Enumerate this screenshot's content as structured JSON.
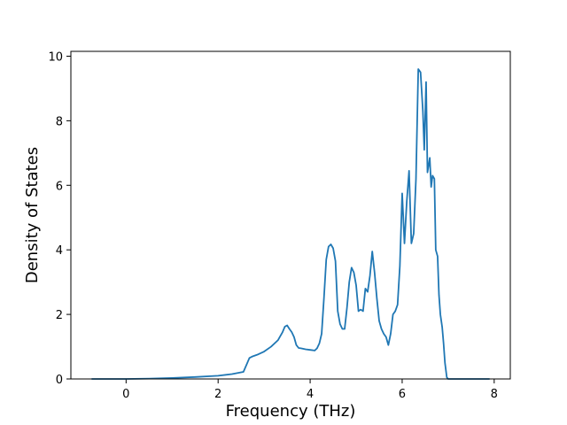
{
  "chart_data": {
    "type": "line",
    "title": "",
    "xlabel": "Frequency (THz)",
    "ylabel": "Density of States",
    "xlim": [
      -1.2,
      8.35
    ],
    "ylim": [
      0,
      10.15
    ],
    "xticks": [
      0,
      2,
      4,
      6,
      8
    ],
    "yticks": [
      0,
      2,
      4,
      6,
      8,
      10
    ],
    "grid": false,
    "legend": "none",
    "series_color": "#1f77b4",
    "series": [
      {
        "x": [
          -0.75,
          0.0,
          0.5,
          1.0,
          1.5,
          2.0,
          2.3,
          2.55,
          2.62,
          2.68,
          2.75,
          2.85,
          3.0,
          3.15,
          3.3,
          3.4,
          3.45,
          3.5,
          3.55,
          3.6,
          3.65,
          3.7,
          3.75,
          3.8,
          3.9,
          4.0,
          4.1,
          4.15,
          4.2,
          4.25,
          4.3,
          4.35,
          4.4,
          4.45,
          4.5,
          4.55,
          4.6,
          4.65,
          4.7,
          4.75,
          4.8,
          4.85,
          4.9,
          4.95,
          5.0,
          5.05,
          5.1,
          5.15,
          5.2,
          5.25,
          5.3,
          5.35,
          5.4,
          5.45,
          5.5,
          5.55,
          5.6,
          5.65,
          5.7,
          5.75,
          5.8,
          5.85,
          5.9,
          5.95,
          6.0,
          6.05,
          6.1,
          6.15,
          6.2,
          6.25,
          6.3,
          6.35,
          6.4,
          6.45,
          6.48,
          6.52,
          6.55,
          6.6,
          6.63,
          6.66,
          6.7,
          6.73,
          6.77,
          6.8,
          6.83,
          6.87,
          6.9,
          6.93,
          6.97,
          7.0,
          7.05,
          7.1,
          7.15,
          7.18,
          7.22,
          7.3,
          7.5,
          7.9
        ],
        "y": [
          0,
          0,
          0.01,
          0.03,
          0.06,
          0.1,
          0.15,
          0.22,
          0.45,
          0.65,
          0.7,
          0.75,
          0.85,
          1.0,
          1.2,
          1.45,
          1.62,
          1.66,
          1.55,
          1.45,
          1.3,
          1.05,
          0.96,
          0.95,
          0.92,
          0.9,
          0.88,
          0.95,
          1.1,
          1.4,
          2.5,
          3.7,
          4.1,
          4.17,
          4.05,
          3.65,
          2.1,
          1.7,
          1.55,
          1.55,
          2.2,
          3.0,
          3.45,
          3.3,
          2.9,
          2.1,
          2.15,
          2.1,
          2.8,
          2.7,
          3.2,
          3.95,
          3.3,
          2.5,
          1.8,
          1.55,
          1.4,
          1.3,
          1.05,
          1.4,
          2.0,
          2.1,
          2.3,
          3.5,
          5.75,
          4.2,
          5.5,
          6.45,
          4.2,
          4.5,
          6.2,
          9.6,
          9.5,
          8.3,
          7.1,
          9.2,
          6.4,
          6.85,
          5.95,
          6.3,
          6.2,
          4.0,
          3.8,
          2.6,
          2.0,
          1.6,
          1.1,
          0.5,
          0.05,
          0,
          0,
          0,
          0,
          0,
          0,
          0,
          0,
          0
        ]
      }
    ]
  }
}
